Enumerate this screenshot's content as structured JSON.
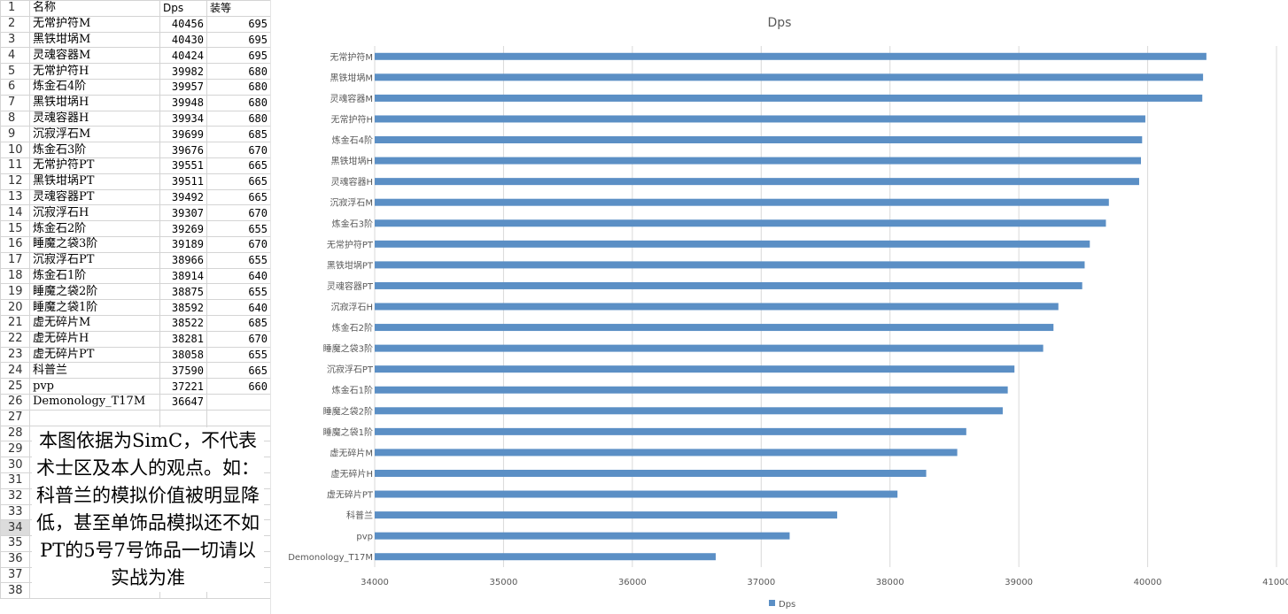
{
  "sheet": {
    "headers": [
      "名称",
      "Dps",
      "装等"
    ],
    "rows": [
      {
        "name": "无常护符M",
        "dps": "40456",
        "gear": "695"
      },
      {
        "name": "黑铁坩埚M",
        "dps": "40430",
        "gear": "695"
      },
      {
        "name": "灵魂容器M",
        "dps": "40424",
        "gear": "695"
      },
      {
        "name": "无常护符H",
        "dps": "39982",
        "gear": "680"
      },
      {
        "name": "炼金石4阶",
        "dps": "39957",
        "gear": "680"
      },
      {
        "name": "黑铁坩埚H",
        "dps": "39948",
        "gear": "680"
      },
      {
        "name": "灵魂容器H",
        "dps": "39934",
        "gear": "680"
      },
      {
        "name": "沉寂浮石M",
        "dps": "39699",
        "gear": "685"
      },
      {
        "name": "炼金石3阶",
        "dps": "39676",
        "gear": "670"
      },
      {
        "name": "无常护符PT",
        "dps": "39551",
        "gear": "665"
      },
      {
        "name": "黑铁坩埚PT",
        "dps": "39511",
        "gear": "665"
      },
      {
        "name": "灵魂容器PT",
        "dps": "39492",
        "gear": "665"
      },
      {
        "name": "沉寂浮石H",
        "dps": "39307",
        "gear": "670"
      },
      {
        "name": "炼金石2阶",
        "dps": "39269",
        "gear": "655"
      },
      {
        "name": "睡魔之袋3阶",
        "dps": "39189",
        "gear": "670"
      },
      {
        "name": "沉寂浮石PT",
        "dps": "38966",
        "gear": "655"
      },
      {
        "name": "炼金石1阶",
        "dps": "38914",
        "gear": "640"
      },
      {
        "name": "睡魔之袋2阶",
        "dps": "38875",
        "gear": "655"
      },
      {
        "name": "睡魔之袋1阶",
        "dps": "38592",
        "gear": "640"
      },
      {
        "name": "虚无碎片M",
        "dps": "38522",
        "gear": "685"
      },
      {
        "name": "虚无碎片H",
        "dps": "38281",
        "gear": "670"
      },
      {
        "name": "虚无碎片PT",
        "dps": "38058",
        "gear": "655"
      },
      {
        "name": "科普兰",
        "dps": "37590",
        "gear": "665"
      },
      {
        "name": "pvp",
        "dps": "37221",
        "gear": "660"
      },
      {
        "name": "Demonology_T17M",
        "dps": "36647",
        "gear": ""
      }
    ],
    "row_numbers": [
      "1",
      "2",
      "3",
      "4",
      "5",
      "6",
      "7",
      "8",
      "9",
      "10",
      "11",
      "12",
      "13",
      "14",
      "15",
      "16",
      "17",
      "18",
      "19",
      "20",
      "21",
      "22",
      "23",
      "24",
      "25",
      "26",
      "27",
      "28",
      "29",
      "30",
      "31",
      "32",
      "33",
      "34",
      "35",
      "36",
      "37",
      "38"
    ],
    "selected_row": "34"
  },
  "note": {
    "text": "本图依据为SimC，不代表术士区及本人的观点。如：科普兰的模拟价值被明显降低，甚至单饰品模拟还不如PT的5号7号饰品一切请以实战为准"
  },
  "colors": {
    "bar": "#5b8fc5",
    "grid": "#d9d9d9",
    "text": "#595959"
  },
  "chart_data": {
    "type": "bar",
    "orientation": "horizontal",
    "title": "Dps",
    "categories": [
      "无常护符M",
      "黑铁坩埚M",
      "灵魂容器M",
      "无常护符H",
      "炼金石4阶",
      "黑铁坩埚H",
      "灵魂容器H",
      "沉寂浮石M",
      "炼金石3阶",
      "无常护符PT",
      "黑铁坩埚PT",
      "灵魂容器PT",
      "沉寂浮石H",
      "炼金石2阶",
      "睡魔之袋3阶",
      "沉寂浮石PT",
      "炼金石1阶",
      "睡魔之袋2阶",
      "睡魔之袋1阶",
      "虚无碎片M",
      "虚无碎片H",
      "虚无碎片PT",
      "科普兰",
      "pvp",
      "Demonology_T17M"
    ],
    "series": [
      {
        "name": "Dps",
        "values": [
          40456,
          40430,
          40424,
          39982,
          39957,
          39948,
          39934,
          39699,
          39676,
          39551,
          39511,
          39492,
          39307,
          39269,
          39189,
          38966,
          38914,
          38875,
          38592,
          38522,
          38281,
          38058,
          37590,
          37221,
          36647
        ]
      }
    ],
    "xlim": [
      34000,
      41000
    ],
    "xticks": [
      34000,
      35000,
      36000,
      37000,
      38000,
      39000,
      40000,
      41000
    ],
    "grid": true,
    "legend": "bottom"
  }
}
